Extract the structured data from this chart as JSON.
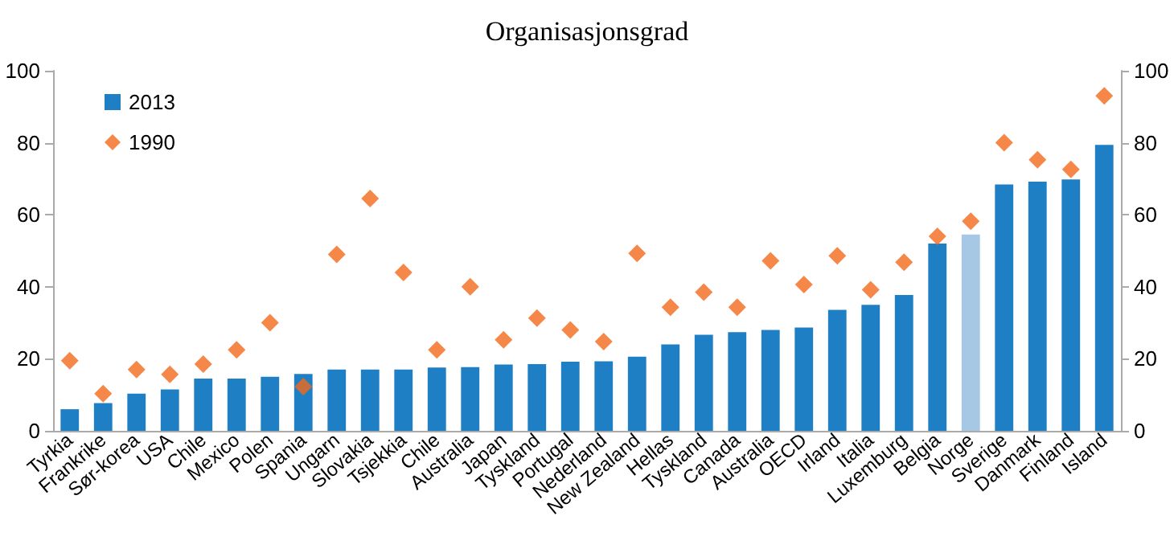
{
  "chart_data": {
    "type": "bar",
    "title": "Organisasjonsgrad",
    "categories": [
      "Tyrkia",
      "Frankrike",
      "Sør-korea",
      "USA",
      "Chile",
      "Mexico",
      "Polen",
      "Spania",
      "Ungarn",
      "Slovakia",
      "Tsjekkia",
      "Chile",
      "Australia",
      "Japan",
      "Tyskland",
      "Portugal",
      "Nederland",
      "New Zealand",
      "Hellas",
      "Tyskland",
      "Canada",
      "Australia",
      "OECD",
      "Irland",
      "Italia",
      "Luxemburg",
      "Belgia",
      "Norge",
      "Sverige",
      "Danmark",
      "Finland",
      "Island"
    ],
    "series": [
      {
        "name": "2013",
        "type": "bar",
        "color": "#1f7fc4",
        "colors": [
          "#1f7fc4",
          "#1f7fc4",
          "#1f7fc4",
          "#1f7fc4",
          "#1f7fc4",
          "#1f7fc4",
          "#1f7fc4",
          "#1f7fc4",
          "#1f7fc4",
          "#1f7fc4",
          "#1f7fc4",
          "#1f7fc4",
          "#1f7fc4",
          "#1f7fc4",
          "#1f7fc4",
          "#1f7fc4",
          "#1f7fc4",
          "#1f7fc4",
          "#1f7fc4",
          "#1f7fc4",
          "#1f7fc4",
          "#1f7fc4",
          "#1f7fc4",
          "#1f7fc4",
          "#1f7fc4",
          "#1f7fc4",
          "#1f7fc4",
          "#a6c8e4",
          "#1f7fc4",
          "#1f7fc4",
          "#1f7fc4",
          "#1f7fc4"
        ],
        "values": [
          6,
          7.7,
          10.3,
          11.5,
          14.5,
          14.5,
          15,
          15.8,
          17,
          17,
          17,
          17.6,
          17.7,
          18.4,
          18.5,
          19.2,
          19.3,
          20.6,
          24,
          26.7,
          27.4,
          28,
          28.7,
          33.6,
          35,
          37.7,
          52,
          54.5,
          68.4,
          69.2,
          69.8,
          79.4
        ]
      },
      {
        "name": "1990",
        "type": "scatter",
        "marker": "diamond",
        "color": "#f26a1b",
        "values": [
          19.5,
          10.3,
          17,
          15.7,
          18.5,
          22.5,
          30,
          12.3,
          49,
          64.5,
          44,
          22.5,
          40,
          25.3,
          31.3,
          28,
          24.8,
          49.3,
          34.3,
          38.5,
          34.3,
          47.2,
          40.6,
          48.6,
          39.2,
          46.8,
          54,
          58.2,
          80,
          75.3,
          72.6,
          93
        ]
      }
    ],
    "ylim": [
      0,
      100
    ],
    "yticks": [
      0,
      20,
      40,
      60,
      80,
      100
    ],
    "y2lim": [
      0,
      100
    ],
    "y2ticks": [
      0,
      20,
      40,
      60,
      80,
      100
    ],
    "grid": false,
    "legend": "top left"
  }
}
